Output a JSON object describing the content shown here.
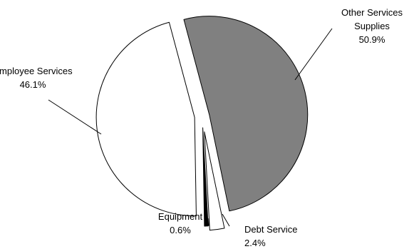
{
  "chart_data": {
    "type": "pie",
    "title": "",
    "legend": "none",
    "slices": [
      {
        "label_lines": [
          "Other Services",
          "Supplies"
        ],
        "value": 50.9,
        "value_label": "50.9%",
        "color": "#808080"
      },
      {
        "label_lines": [
          "Debt Service"
        ],
        "value": 2.4,
        "value_label": "2.4%",
        "color": "#ffffff"
      },
      {
        "label_lines": [
          "Equipment"
        ],
        "value": 0.6,
        "value_label": "0.6%",
        "color": "#000000"
      },
      {
        "label_lines": [
          "Employee Services"
        ],
        "value": 46.1,
        "value_label": "46.1%",
        "color": "#ffffff"
      }
    ]
  }
}
